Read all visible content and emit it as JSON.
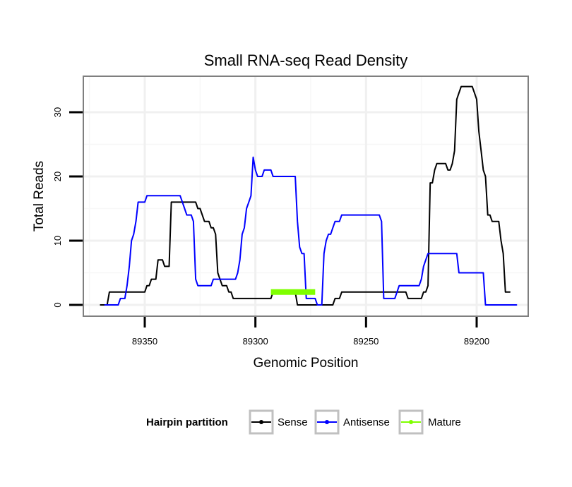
{
  "chart_data": {
    "type": "line",
    "title": "Small RNA-seq Read Density",
    "xlabel": "Genomic Position",
    "ylabel": "Total Reads",
    "x_reversed": true,
    "xlim": [
      89183,
      89385
    ],
    "ylim": [
      -1.5,
      35.5
    ],
    "x_ticks": [
      89350,
      89300,
      89250,
      89200
    ],
    "y_ticks": [
      0,
      10,
      20,
      30
    ],
    "grid": true,
    "legend": {
      "title": "Hairpin partition",
      "position": "bottom",
      "entries": [
        "Sense",
        "Antisense",
        "Mature"
      ]
    },
    "colors": {
      "Sense": "#000000",
      "Antisense": "#0000ff",
      "Mature": "#7fff00"
    },
    "series": [
      {
        "name": "Sense",
        "points": [
          [
            89370,
            0
          ],
          [
            89367,
            0
          ],
          [
            89366,
            2
          ],
          [
            89358,
            2
          ],
          [
            89350,
            2
          ],
          [
            89349,
            3
          ],
          [
            89348,
            3
          ],
          [
            89347,
            4
          ],
          [
            89345,
            4
          ],
          [
            89344,
            7
          ],
          [
            89342,
            7
          ],
          [
            89341,
            6
          ],
          [
            89339,
            6
          ],
          [
            89338,
            16
          ],
          [
            89328,
            16
          ],
          [
            89327,
            16
          ],
          [
            89326,
            15
          ],
          [
            89325,
            15
          ],
          [
            89323,
            13
          ],
          [
            89321,
            13
          ],
          [
            89320,
            12
          ],
          [
            89319,
            12
          ],
          [
            89318,
            11
          ],
          [
            89317,
            5
          ],
          [
            89316,
            4
          ],
          [
            89315,
            3
          ],
          [
            89313,
            3
          ],
          [
            89312,
            2
          ],
          [
            89311,
            2
          ],
          [
            89310,
            1
          ],
          [
            89293,
            1
          ],
          [
            89292,
            2
          ],
          [
            89282,
            2
          ],
          [
            89281,
            0
          ],
          [
            89265,
            0
          ],
          [
            89264,
            1
          ],
          [
            89262,
            1
          ],
          [
            89261,
            2
          ],
          [
            89243,
            2
          ],
          [
            89232,
            2
          ],
          [
            89231,
            1
          ],
          [
            89225,
            1
          ],
          [
            89224,
            2
          ],
          [
            89223,
            2
          ],
          [
            89222,
            3
          ],
          [
            89221,
            19
          ],
          [
            89220,
            19
          ],
          [
            89219,
            21
          ],
          [
            89218,
            22
          ],
          [
            89214,
            22
          ],
          [
            89213,
            21
          ],
          [
            89212,
            21
          ],
          [
            89211,
            22
          ],
          [
            89210,
            24
          ],
          [
            89209,
            32
          ],
          [
            89208,
            33
          ],
          [
            89207,
            34
          ],
          [
            89202,
            34
          ],
          [
            89201,
            33
          ],
          [
            89200,
            32
          ],
          [
            89199,
            27
          ],
          [
            89198,
            24
          ],
          [
            89197,
            21
          ],
          [
            89196,
            20
          ],
          [
            89195,
            14
          ],
          [
            89194,
            14
          ],
          [
            89193,
            13
          ],
          [
            89190,
            13
          ],
          [
            89189,
            10
          ],
          [
            89188,
            8
          ],
          [
            89187,
            2
          ],
          [
            89185,
            2
          ]
        ]
      },
      {
        "name": "Antisense",
        "points": [
          [
            89368,
            0
          ],
          [
            89362,
            0
          ],
          [
            89361,
            1
          ],
          [
            89359,
            1
          ],
          [
            89358,
            3
          ],
          [
            89357,
            6
          ],
          [
            89356,
            10
          ],
          [
            89355,
            11
          ],
          [
            89354,
            13
          ],
          [
            89353,
            16
          ],
          [
            89350,
            16
          ],
          [
            89349,
            17
          ],
          [
            89334,
            17
          ],
          [
            89333,
            16
          ],
          [
            89332,
            15
          ],
          [
            89331,
            14
          ],
          [
            89329,
            14
          ],
          [
            89328,
            13
          ],
          [
            89327,
            4
          ],
          [
            89326,
            3
          ],
          [
            89320,
            3
          ],
          [
            89319,
            4
          ],
          [
            89309,
            4
          ],
          [
            89308,
            5
          ],
          [
            89307,
            7
          ],
          [
            89306,
            11
          ],
          [
            89305,
            12
          ],
          [
            89304,
            15
          ],
          [
            89303,
            16
          ],
          [
            89302,
            17
          ],
          [
            89301,
            23
          ],
          [
            89300,
            21
          ],
          [
            89299,
            20
          ],
          [
            89297,
            20
          ],
          [
            89296,
            21
          ],
          [
            89293,
            21
          ],
          [
            89292,
            20
          ],
          [
            89282,
            20
          ],
          [
            89281,
            13
          ],
          [
            89280,
            9
          ],
          [
            89279,
            8
          ],
          [
            89278,
            8
          ],
          [
            89277,
            1
          ],
          [
            89273,
            1
          ],
          [
            89272,
            0
          ],
          [
            89270,
            0
          ],
          [
            89269,
            8
          ],
          [
            89268,
            10
          ],
          [
            89267,
            11
          ],
          [
            89266,
            11
          ],
          [
            89265,
            12
          ],
          [
            89264,
            13
          ],
          [
            89262,
            13
          ],
          [
            89261,
            14
          ],
          [
            89244,
            14
          ],
          [
            89243,
            13
          ],
          [
            89242,
            1
          ],
          [
            89237,
            1
          ],
          [
            89236,
            2
          ],
          [
            89235,
            3
          ],
          [
            89226,
            3
          ],
          [
            89225,
            4
          ],
          [
            89224,
            6
          ],
          [
            89223,
            7
          ],
          [
            89222,
            8
          ],
          [
            89209,
            8
          ],
          [
            89208,
            5
          ],
          [
            89197,
            5
          ],
          [
            89196,
            0
          ],
          [
            89182,
            0
          ]
        ]
      },
      {
        "name": "Mature",
        "points": [
          [
            89293,
            2
          ],
          [
            89273,
            2
          ]
        ]
      }
    ]
  }
}
